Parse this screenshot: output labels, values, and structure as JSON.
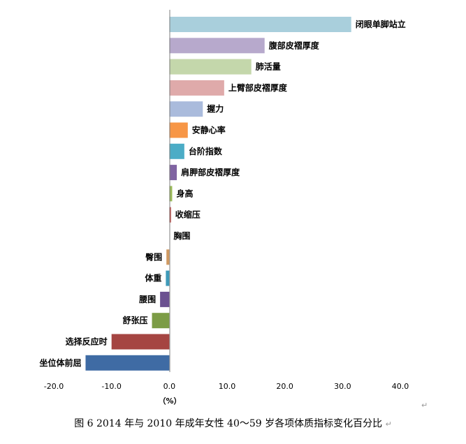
{
  "chart_data": {
    "type": "bar",
    "orientation": "horizontal",
    "categories": [
      "闭眼单脚站立",
      "腹部皮褶厚度",
      "肺活量",
      "上臂部皮褶厚度",
      "握力",
      "安静心率",
      "台阶指数",
      "肩胛部皮褶厚度",
      "身高",
      "收缩压",
      "胸围",
      "臀围",
      "体重",
      "腰围",
      "舒张压",
      "选择反应时",
      "坐位体前屈"
    ],
    "values": [
      31.5,
      16.5,
      14.2,
      9.5,
      5.8,
      3.2,
      2.6,
      1.3,
      0.5,
      0.3,
      0.0,
      -0.5,
      -0.6,
      -1.6,
      -3.0,
      -10.0,
      -14.5
    ],
    "colors": [
      "#a9cfdc",
      "#b7a9cc",
      "#c4d7ab",
      "#dfaaaa",
      "#aabbdc",
      "#f79646",
      "#4bacc6",
      "#8064a2",
      "#9bbb59",
      "#c0504d",
      "#4f81bd",
      "#d09a63",
      "#3f9ab9",
      "#6b5190",
      "#7c9c46",
      "#a54542",
      "#3f6ba4"
    ],
    "xlim": [
      -20,
      40
    ],
    "xticks": [
      "-20.0",
      "-10.0",
      "0.0",
      "10.0",
      "20.0",
      "30.0",
      "40.0"
    ],
    "xlabel": "（%）",
    "grid": false
  },
  "caption": {
    "text": "图 6    2014 年与 2010 年成年女性 40～59 岁各项体质指标变化百分比"
  },
  "marks": {
    "paragraph": "↵"
  }
}
